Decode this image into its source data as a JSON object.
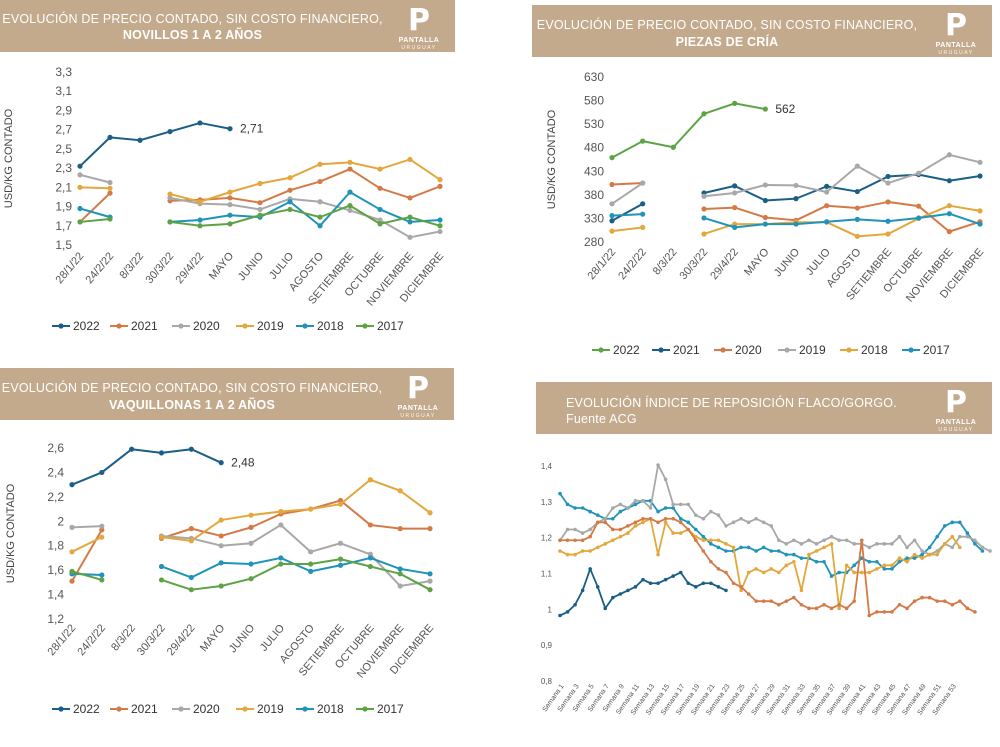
{
  "brand": {
    "name": "PANTALLA",
    "country": "URUGUAY"
  },
  "charts": [
    {
      "id": "novillos",
      "banner": {
        "line1": "EVOLUCIÓN DE PRECIO CONTADO, SIN COSTO FINANCIERO,",
        "line2": "NOVILLOS 1 A 2 AÑOS"
      },
      "chart_data": {
        "type": "line",
        "ylabel": "USD/KG CONTADO",
        "ylim": [
          1.5,
          3.3
        ],
        "yticks": [
          "1,5",
          "1,7",
          "1,9",
          "2,1",
          "2,3",
          "2,5",
          "2,7",
          "2,9",
          "3,1",
          "3,3"
        ],
        "categories": [
          "28/1/22",
          "24/2/22",
          "8/3/22",
          "30/3/22",
          "29/4/22",
          "MAYO",
          "JUNIO",
          "JULIO",
          "AGOSTO",
          "SETIEMBRE",
          "OCTUBRE",
          "NOVIEMBRE",
          "DICIEMBRE"
        ],
        "annotation": {
          "text": "2,71",
          "series": "2022"
        },
        "legend": "bottom",
        "series": [
          {
            "name": "2022",
            "color": "#1b5e86",
            "values": [
              2.32,
              2.62,
              2.59,
              2.68,
              2.77,
              2.71,
              null,
              null,
              null,
              null,
              null,
              null,
              null
            ]
          },
          {
            "name": "2021",
            "color": "#d47a47",
            "values": [
              1.74,
              2.04,
              null,
              1.96,
              1.97,
              1.99,
              1.94,
              2.07,
              2.16,
              2.29,
              2.09,
              1.99,
              2.11
            ]
          },
          {
            "name": "2020",
            "color": "#a8a8a8",
            "values": [
              2.23,
              2.15,
              null,
              1.99,
              1.93,
              1.92,
              1.87,
              1.98,
              1.95,
              1.86,
              1.76,
              1.58,
              1.64
            ]
          },
          {
            "name": "2019",
            "color": "#e3a73c",
            "values": [
              2.1,
              2.09,
              null,
              2.03,
              1.95,
              2.05,
              2.14,
              2.2,
              2.34,
              2.36,
              2.29,
              2.39,
              2.18
            ]
          },
          {
            "name": "2018",
            "color": "#1f93ba",
            "values": [
              1.88,
              1.79,
              null,
              1.74,
              1.76,
              1.81,
              1.79,
              1.95,
              1.7,
              2.05,
              1.87,
              1.74,
              1.76
            ]
          },
          {
            "name": "2017",
            "color": "#5da346",
            "values": [
              1.74,
              1.77,
              null,
              1.74,
              1.7,
              1.72,
              1.81,
              1.87,
              1.79,
              1.91,
              1.72,
              1.79,
              1.7
            ]
          }
        ]
      }
    },
    {
      "id": "piezas",
      "banner": {
        "line1": "EVOLUCIÓN DE PRECIO CONTADO, SIN COSTO FINANCIERO,",
        "line2": "PIEZAS DE CRÍA"
      },
      "chart_data": {
        "type": "line",
        "ylabel": "USD/KG CONTADO",
        "ylim": [
          280,
          630
        ],
        "yticks": [
          "280",
          "330",
          "380",
          "430",
          "480",
          "530",
          "580",
          "630"
        ],
        "categories": [
          "28/1/22",
          "24/2/22",
          "8/3/22",
          "30/3/22",
          "29/4/22",
          "MAYO",
          "JUNIO",
          "JULIO",
          "AGOSTO",
          "SETIEMBRE",
          "OCTUBRE",
          "NOVIEMBRE",
          "DICIEMBRE"
        ],
        "annotation": {
          "text": "562",
          "series": "2022"
        },
        "legend": "bottom",
        "series": [
          {
            "name": "2022",
            "color": "#5da346",
            "values": [
              459,
              494,
              481,
              552,
              574,
              562,
              null,
              null,
              null,
              null,
              null,
              null,
              null
            ]
          },
          {
            "name": "2021",
            "color": "#1b5e86",
            "values": [
              325,
              361,
              null,
              384,
              399,
              368,
              372,
              398,
              387,
              419,
              423,
              410,
              420
            ]
          },
          {
            "name": "2020",
            "color": "#d47a47",
            "values": [
              402,
              405,
              null,
              350,
              353,
              332,
              326,
              357,
              352,
              365,
              356,
              302,
              323
            ]
          },
          {
            "name": "2019",
            "color": "#a8a8a8",
            "values": [
              361,
              405,
              null,
              377,
              384,
              401,
              400,
              386,
              441,
              405,
              426,
              465,
              449
            ]
          },
          {
            "name": "2018",
            "color": "#e3a73c",
            "values": [
              303,
              311,
              null,
              297,
              318,
              318,
              322,
              322,
              292,
              297,
              330,
              357,
              346
            ]
          },
          {
            "name": "2017",
            "color": "#1f93ba",
            "values": [
              336,
              339,
              null,
              331,
              311,
              318,
              318,
              323,
              328,
              324,
              331,
              340,
              318
            ]
          }
        ]
      }
    },
    {
      "id": "vaquillonas",
      "banner": {
        "line1": "EVOLUCIÓN DE PRECIO CONTADO, SIN COSTO FINANCIERO,",
        "line2": "VAQUILLONAS 1 A 2 AÑOS"
      },
      "chart_data": {
        "type": "line",
        "ylabel": "USD/KG CONTADO",
        "ylim": [
          1.2,
          2.6
        ],
        "yticks": [
          "1,2",
          "1,4",
          "1,6",
          "1,8",
          "2",
          "2,2",
          "2,4",
          "2,6"
        ],
        "categories": [
          "28/1/22",
          "24/2/22",
          "8/3/22",
          "30/3/22",
          "29/4/22",
          "MAYO",
          "JUNIO",
          "JULIO",
          "AGOSTO",
          "SETIEMBRE",
          "OCTUBRE",
          "NOVIEMBRE",
          "DICIEMBRE"
        ],
        "annotation": {
          "text": "2,48",
          "series": "2022"
        },
        "legend": "bottom",
        "series": [
          {
            "name": "2022",
            "color": "#1b5e86",
            "values": [
              2.3,
              2.4,
              2.59,
              2.56,
              2.59,
              2.48,
              null,
              null,
              null,
              null,
              null,
              null,
              null
            ]
          },
          {
            "name": "2021",
            "color": "#d47a47",
            "values": [
              1.51,
              1.93,
              null,
              1.86,
              1.94,
              1.88,
              1.95,
              2.06,
              2.1,
              2.17,
              1.97,
              1.94,
              1.94
            ]
          },
          {
            "name": "2020",
            "color": "#a8a8a8",
            "values": [
              1.95,
              1.96,
              null,
              1.88,
              1.86,
              1.8,
              1.82,
              1.97,
              1.75,
              1.82,
              1.73,
              1.47,
              1.51
            ]
          },
          {
            "name": "2019",
            "color": "#e3a73c",
            "values": [
              1.75,
              1.87,
              null,
              1.87,
              1.84,
              2.01,
              2.05,
              2.08,
              2.1,
              2.14,
              2.34,
              2.25,
              2.07
            ]
          },
          {
            "name": "2018",
            "color": "#1f93ba",
            "values": [
              1.57,
              1.56,
              null,
              1.63,
              1.54,
              1.66,
              1.65,
              1.7,
              1.59,
              1.64,
              1.7,
              1.61,
              1.57
            ]
          },
          {
            "name": "2017",
            "color": "#5da346",
            "values": [
              1.59,
              1.52,
              null,
              1.52,
              1.44,
              1.47,
              1.53,
              1.65,
              1.65,
              1.69,
              1.63,
              1.57,
              1.44
            ]
          }
        ]
      }
    },
    {
      "id": "reposicion",
      "banner": {
        "line1": "EVOLUCIÓN ÍNDICE DE REPOSICIÓN FLACO/GORGO.",
        "line2": "Fuente ACG"
      },
      "chart_data": {
        "type": "line",
        "ylabel": "",
        "ylim": [
          0.8,
          1.4
        ],
        "yticks": [
          "0,8",
          "0,9",
          "1",
          "1,1",
          "1,2",
          "1,3",
          "1,4"
        ],
        "xlabels": [
          "Semana 1",
          "Semana 3",
          "Semana 5",
          "Semana 7",
          "Semana 9",
          "Semana 11",
          "Semana 13",
          "Semana 15",
          "Semana 17",
          "Semana 19",
          "Semana 21",
          "Semana 23",
          "Semana 25",
          "Semana 27",
          "Semana 29",
          "Semana 31",
          "Semana 33",
          "Semana 35",
          "Semana 37",
          "Semana 39",
          "Semana 41",
          "Semana 43",
          "Semana 45",
          "Semana 47",
          "Semana 49",
          "Semana 51",
          "Semana 53"
        ],
        "legend": "none",
        "series": [
          {
            "name": "",
            "color": "#1f93ba",
            "values": [
              1.32,
              1.29,
              1.28,
              1.28,
              1.27,
              1.26,
              1.25,
              1.25,
              1.27,
              1.28,
              1.29,
              1.3,
              1.3,
              1.27,
              1.28,
              1.28,
              1.25,
              1.24,
              1.22,
              1.2,
              1.18,
              1.17,
              1.16,
              1.16,
              1.17,
              1.17,
              1.16,
              1.17,
              1.16,
              1.16,
              1.15,
              1.15,
              1.14,
              1.14,
              1.13,
              1.13,
              1.09,
              1.1,
              1.1,
              1.12,
              1.14,
              1.13,
              1.13,
              1.11,
              1.11,
              1.13,
              1.14,
              1.14,
              1.15,
              1.17,
              1.2,
              1.23,
              1.24,
              1.24,
              1.21,
              1.18,
              1.16
            ]
          },
          {
            "name": "",
            "color": "#a8a8a8",
            "values": [
              1.19,
              1.22,
              1.22,
              1.21,
              1.22,
              1.24,
              1.25,
              1.28,
              1.29,
              1.28,
              1.3,
              1.3,
              1.28,
              1.4,
              1.36,
              1.29,
              1.29,
              1.29,
              1.26,
              1.25,
              1.27,
              1.26,
              1.23,
              1.24,
              1.25,
              1.24,
              1.25,
              1.24,
              1.23,
              1.19,
              1.18,
              1.19,
              1.18,
              1.19,
              1.18,
              1.19,
              1.2,
              1.19,
              1.19,
              1.18,
              1.18,
              1.17,
              1.18,
              1.18,
              1.18,
              1.2,
              1.17,
              1.19,
              1.16,
              1.15,
              1.16,
              1.18,
              1.17,
              1.2,
              1.2,
              1.19,
              1.17,
              1.16
            ]
          },
          {
            "name": "",
            "color": "#e3a73c",
            "values": [
              1.16,
              1.15,
              1.15,
              1.16,
              1.16,
              1.17,
              1.18,
              1.19,
              1.2,
              1.21,
              1.23,
              1.24,
              1.25,
              1.15,
              1.24,
              1.21,
              1.21,
              1.22,
              1.2,
              1.19,
              1.19,
              1.19,
              1.18,
              1.17,
              1.05,
              1.1,
              1.11,
              1.1,
              1.11,
              1.1,
              1.12,
              1.13,
              1.05,
              1.15,
              1.16,
              1.17,
              1.18,
              1.0,
              1.12,
              1.1,
              1.1,
              1.1,
              1.11,
              1.12,
              1.12,
              1.14,
              1.13,
              1.15,
              1.14,
              1.15,
              1.15,
              1.18,
              1.2,
              1.17
            ]
          },
          {
            "name": "",
            "color": "#d47a47",
            "values": [
              1.19,
              1.19,
              1.19,
              1.19,
              1.2,
              1.24,
              1.24,
              1.22,
              1.22,
              1.23,
              1.24,
              1.25,
              1.25,
              1.24,
              1.25,
              1.25,
              1.24,
              1.22,
              1.19,
              1.16,
              1.13,
              1.11,
              1.1,
              1.07,
              1.06,
              1.04,
              1.02,
              1.02,
              1.02,
              1.01,
              1.02,
              1.03,
              1.01,
              1.0,
              1.0,
              1.01,
              1.0,
              1.01,
              1.0,
              1.02,
              1.19,
              0.98,
              0.99,
              0.99,
              0.99,
              1.01,
              1.0,
              1.02,
              1.03,
              1.03,
              1.02,
              1.02,
              1.01,
              1.02,
              1.0,
              0.99
            ]
          },
          {
            "name": "",
            "color": "#1b5e86",
            "values": [
              0.98,
              0.99,
              1.01,
              1.05,
              1.11,
              1.06,
              1.0,
              1.03,
              1.04,
              1.05,
              1.06,
              1.08,
              1.07,
              1.07,
              1.08,
              1.09,
              1.1,
              1.07,
              1.06,
              1.07,
              1.07,
              1.06,
              1.05
            ]
          }
        ]
      }
    }
  ]
}
